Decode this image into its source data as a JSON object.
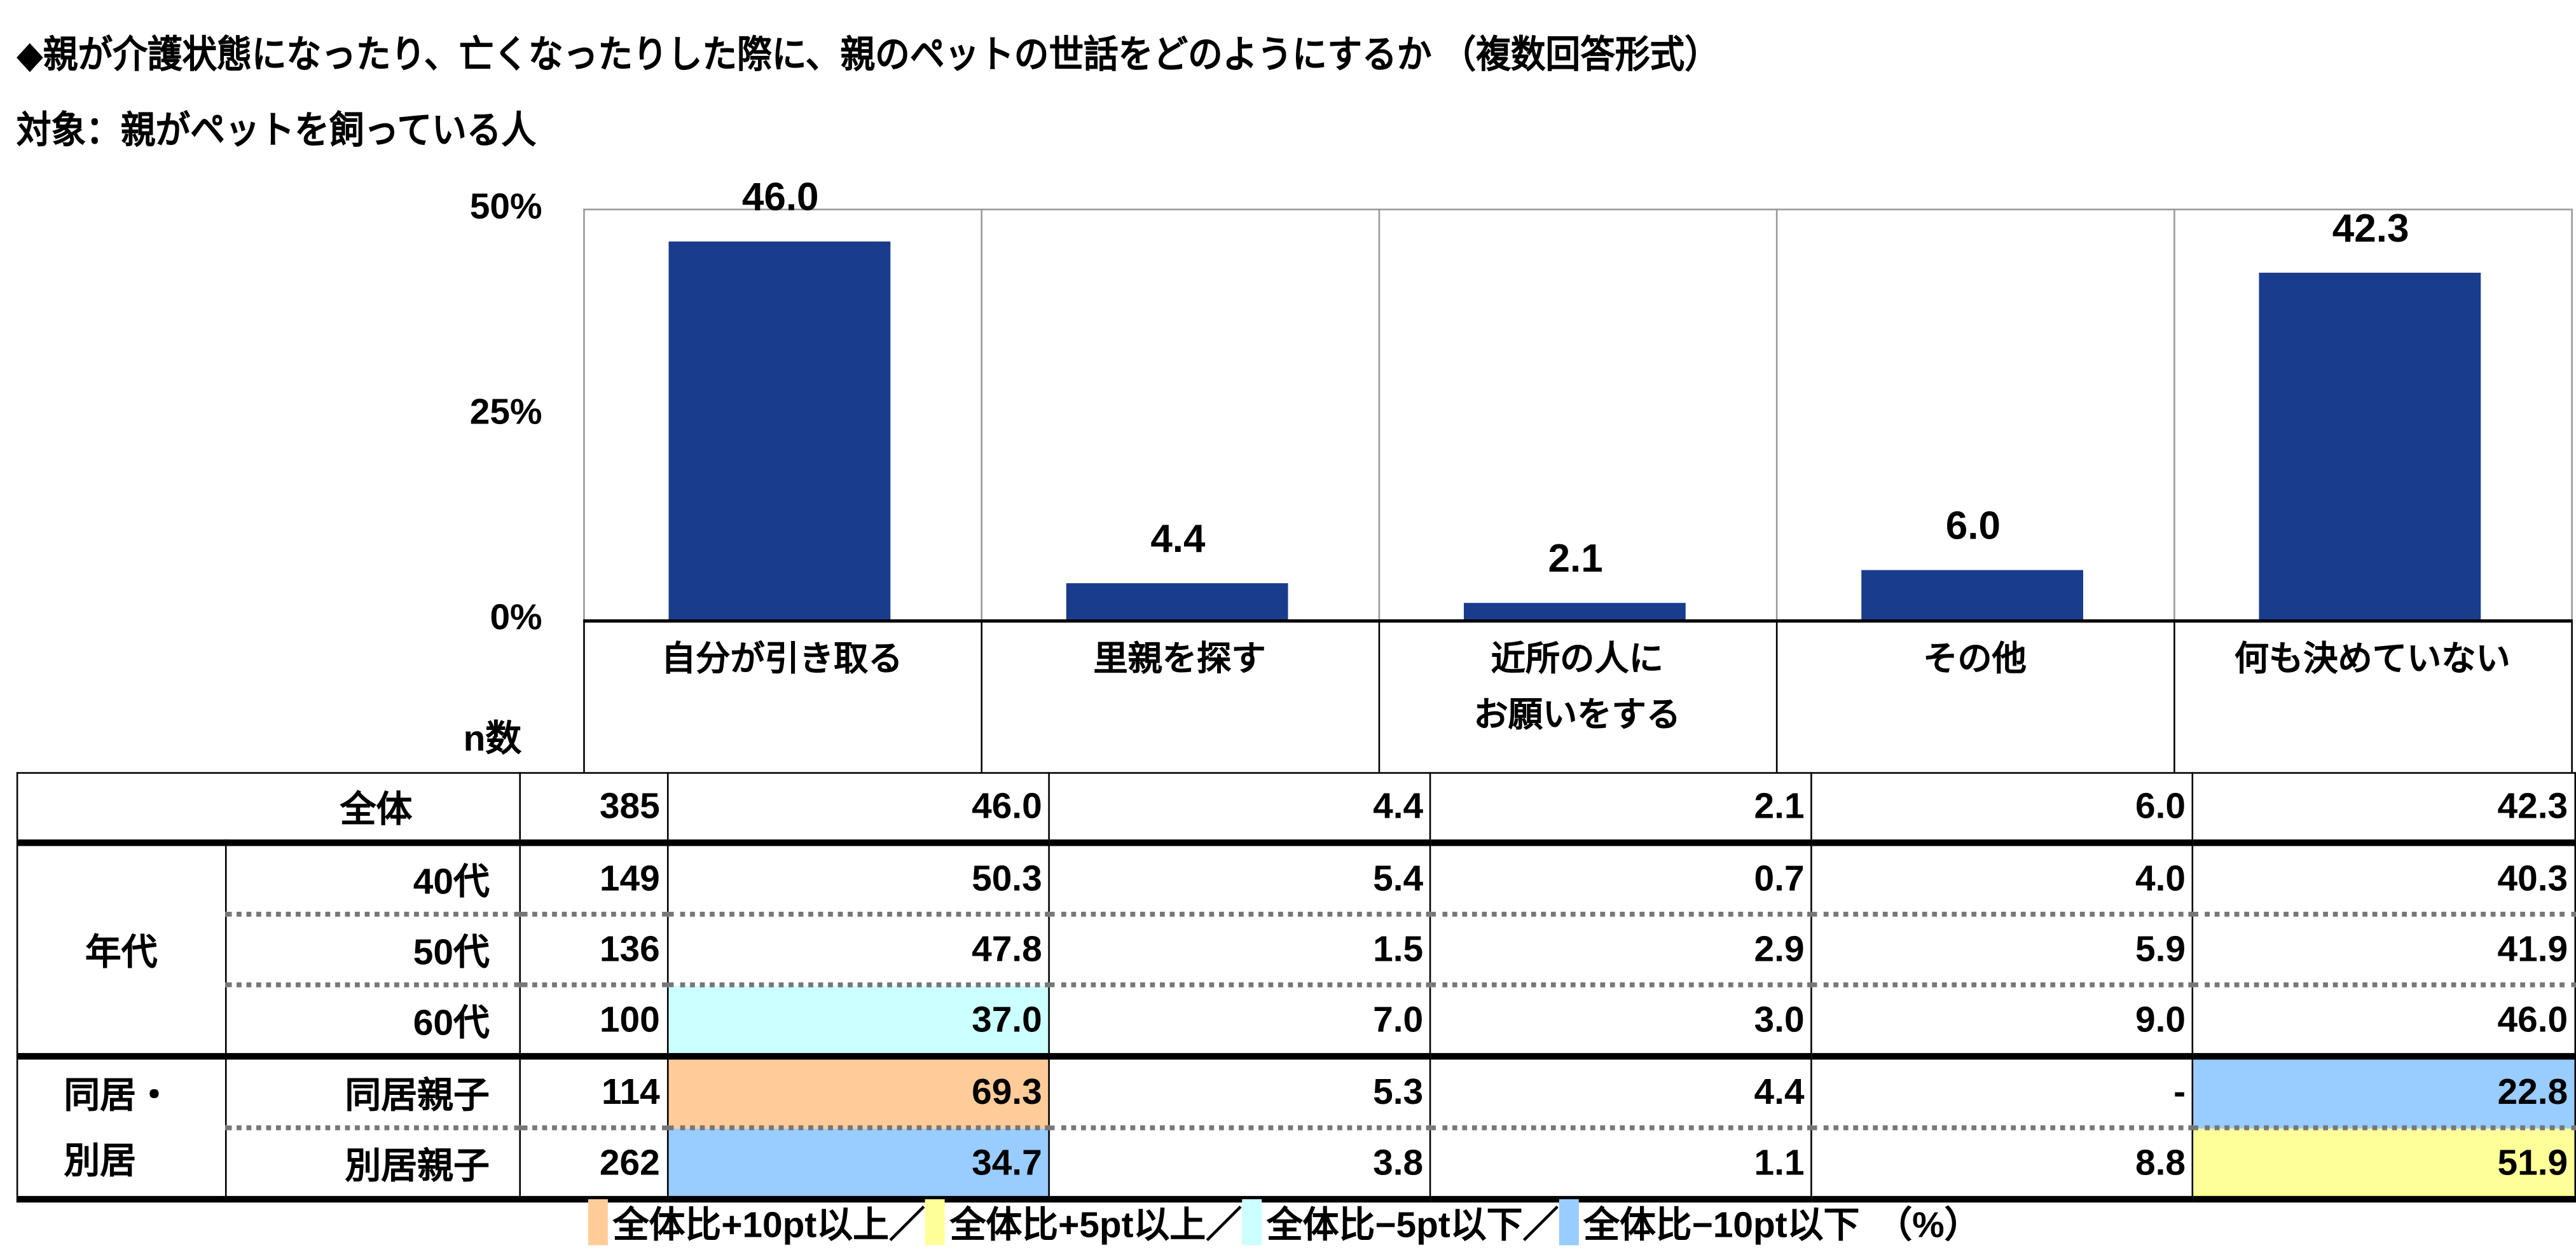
{
  "title": "◆親が介護状態になったり、亡くなったりした際に、親のペットの世話をどのようにするか （複数回答形式）",
  "subtitle": "対象：親がペットを飼っている人",
  "chart_data": {
    "type": "bar",
    "categories": [
      "自分が引き取る",
      "里親を探す",
      "近所の人にお願いをする",
      "その他",
      "何も決めていない"
    ],
    "category_lines": [
      [
        "自分が引き取る"
      ],
      [
        "里親を探す"
      ],
      [
        "近所の人に",
        "お願いをする"
      ],
      [
        "その他"
      ],
      [
        "何も決めていない"
      ]
    ],
    "values": [
      46.0,
      4.4,
      2.1,
      6.0,
      42.3
    ],
    "value_labels": [
      "46.0",
      "4.4",
      "2.1",
      "6.0",
      "42.3"
    ],
    "ylim": [
      0,
      50
    ],
    "yticks": [
      "0%",
      "25%",
      "50%"
    ],
    "ytick_values": [
      0,
      25,
      50
    ],
    "bar_color": "#1a3c8c"
  },
  "table": {
    "n_header": "n数",
    "rows": [
      {
        "group": "",
        "label": "全体",
        "n": "385",
        "values": [
          "46.0",
          "4.4",
          "2.1",
          "6.0",
          "42.3"
        ],
        "hl": [
          "",
          "",
          "",
          "",
          ""
        ]
      },
      {
        "group": "年代",
        "label": "40代",
        "n": "149",
        "values": [
          "50.3",
          "5.4",
          "0.7",
          "4.0",
          "40.3"
        ],
        "hl": [
          "",
          "",
          "",
          "",
          ""
        ]
      },
      {
        "group": "",
        "label": "50代",
        "n": "136",
        "values": [
          "47.8",
          "1.5",
          "2.9",
          "5.9",
          "41.9"
        ],
        "hl": [
          "",
          "",
          "",
          "",
          ""
        ]
      },
      {
        "group": "",
        "label": "60代",
        "n": "100",
        "values": [
          "37.0",
          "7.0",
          "3.0",
          "9.0",
          "46.0"
        ],
        "hl": [
          "m5",
          "",
          "",
          "",
          ""
        ]
      },
      {
        "group": "同居・別居",
        "label": "同居親子",
        "n": "114",
        "values": [
          "69.3",
          "5.3",
          "4.4",
          "-",
          "22.8"
        ],
        "hl": [
          "p10",
          "",
          "",
          "",
          "m10"
        ]
      },
      {
        "group": "",
        "label": "別居親子",
        "n": "262",
        "values": [
          "34.7",
          "3.8",
          "1.1",
          "8.8",
          "51.9"
        ],
        "hl": [
          "m10",
          "",
          "",
          "",
          "p5"
        ]
      }
    ],
    "group_labels": {
      "age": "年代",
      "cohab_1": "同居・",
      "cohab_2": "別居"
    }
  },
  "highlight_colors": {
    "p10": "#ffcc99",
    "p5": "#ffff99",
    "m5": "#ccffff",
    "m10": "#99ccff"
  },
  "legend": [
    {
      "key": "p10",
      "label": "全体比+10pt以上／"
    },
    {
      "key": "p5",
      "label": "全体比+5pt以上／"
    },
    {
      "key": "m5",
      "label": "全体比−5pt以下／"
    },
    {
      "key": "m10",
      "label": "全体比−10pt以下"
    }
  ],
  "unit": "（%）"
}
